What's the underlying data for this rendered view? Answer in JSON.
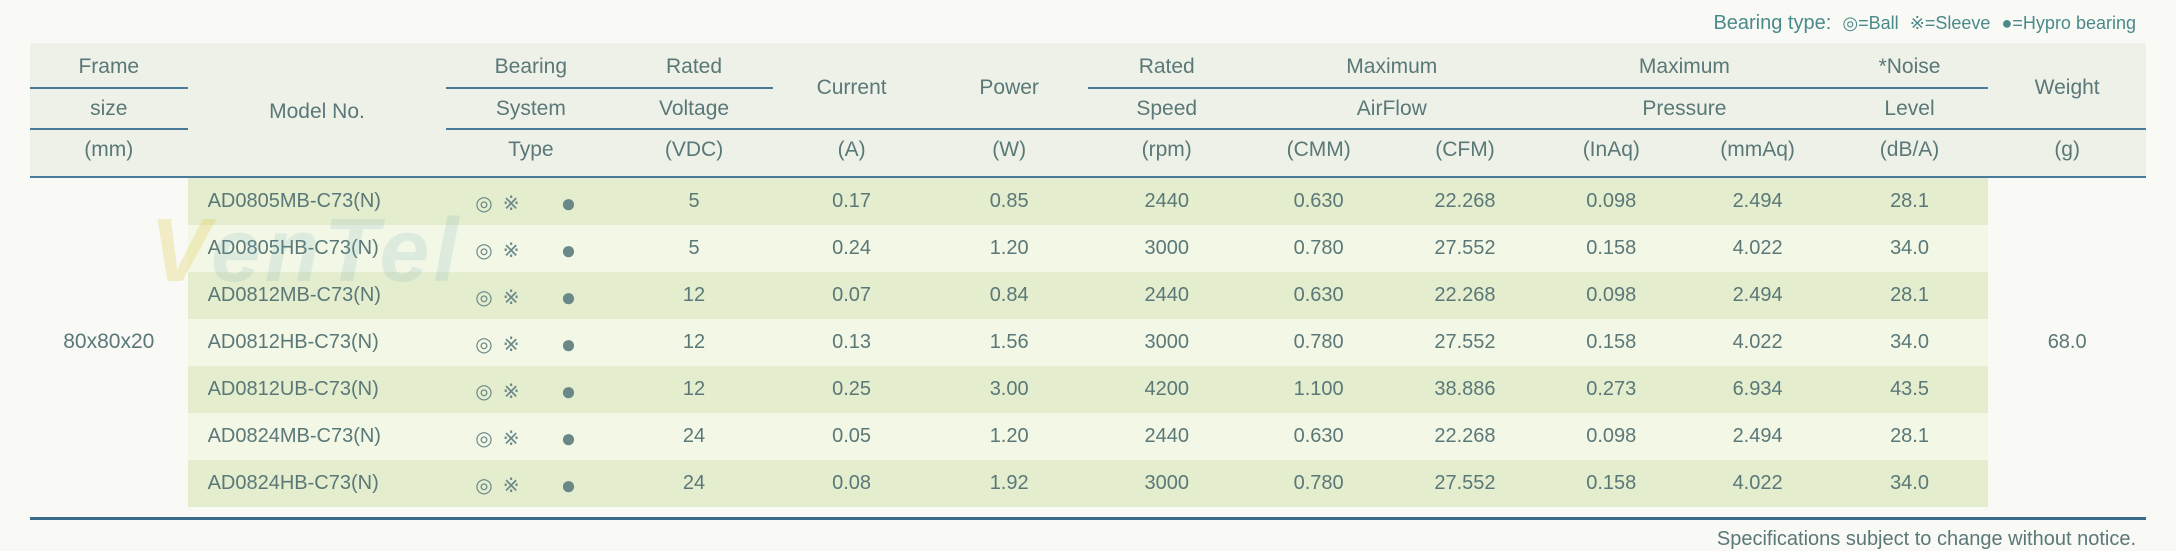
{
  "legend": {
    "prefix": "Bearing type:",
    "ball": "◎=Ball",
    "sleeve": "※=Sleeve",
    "hypro": "●=Hypro bearing"
  },
  "header": {
    "frame1": "Frame",
    "frame2": "size",
    "frame3": "(mm)",
    "model": "Model No.",
    "bearing1": "Bearing",
    "bearing2": "System",
    "bearing3": "Type",
    "voltage1": "Rated",
    "voltage2": "Voltage",
    "voltage3": "(VDC)",
    "current1": "Current",
    "current2": "(A)",
    "power1": "Power",
    "power2": "(W)",
    "speed1": "Rated",
    "speed2": "Speed",
    "speed3": "(rpm)",
    "airflow1": "Maximum",
    "airflow2": "AirFlow",
    "airflow_cmm": "(CMM)",
    "airflow_cfm": "(CFM)",
    "pressure1": "Maximum",
    "pressure2": "Pressure",
    "pressure_inaq": "(InAq)",
    "pressure_mmaq": "(mmAq)",
    "noise1": "*Noise",
    "noise2": "Level",
    "noise3": "(dB/A)",
    "weight1": "Weight",
    "weight2": "(g)"
  },
  "frame_size": "80x80x20",
  "weight_value": "68.0",
  "rows": [
    {
      "model": "AD0805MB-C73(N)",
      "voltage": "5",
      "current": "0.17",
      "power": "0.85",
      "speed": "2440",
      "cmm": "0.630",
      "cfm": "22.268",
      "inaq": "0.098",
      "mmaq": "2.494",
      "noise": "28.1"
    },
    {
      "model": "AD0805HB-C73(N)",
      "voltage": "5",
      "current": "0.24",
      "power": "1.20",
      "speed": "3000",
      "cmm": "0.780",
      "cfm": "27.552",
      "inaq": "0.158",
      "mmaq": "4.022",
      "noise": "34.0"
    },
    {
      "model": "AD0812MB-C73(N)",
      "voltage": "12",
      "current": "0.07",
      "power": "0.84",
      "speed": "2440",
      "cmm": "0.630",
      "cfm": "22.268",
      "inaq": "0.098",
      "mmaq": "2.494",
      "noise": "28.1"
    },
    {
      "model": "AD0812HB-C73(N)",
      "voltage": "12",
      "current": "0.13",
      "power": "1.56",
      "speed": "3000",
      "cmm": "0.780",
      "cfm": "27.552",
      "inaq": "0.158",
      "mmaq": "4.022",
      "noise": "34.0"
    },
    {
      "model": "AD0812UB-C73(N)",
      "voltage": "12",
      "current": "0.25",
      "power": "3.00",
      "speed": "4200",
      "cmm": "1.100",
      "cfm": "38.886",
      "inaq": "0.273",
      "mmaq": "6.934",
      "noise": "43.5"
    },
    {
      "model": "AD0824MB-C73(N)",
      "voltage": "24",
      "current": "0.05",
      "power": "1.20",
      "speed": "2440",
      "cmm": "0.630",
      "cfm": "22.268",
      "inaq": "0.098",
      "mmaq": "2.494",
      "noise": "28.1"
    },
    {
      "model": "AD0824HB-C73(N)",
      "voltage": "24",
      "current": "0.08",
      "power": "1.92",
      "speed": "3000",
      "cmm": "0.780",
      "cfm": "27.552",
      "inaq": "0.158",
      "mmaq": "4.022",
      "noise": "34.0"
    }
  ],
  "bearing_symbols": {
    "ball": "◎",
    "sleeve": "※",
    "hypro": "●"
  },
  "footer": "Specifications subject to change without notice.",
  "colors": {
    "stripe_a": "#e4edce",
    "stripe_b": "#f3f7e6",
    "header_bg": "#eef1e7",
    "text": "#5a7878",
    "rule": "#3a6a8a"
  }
}
